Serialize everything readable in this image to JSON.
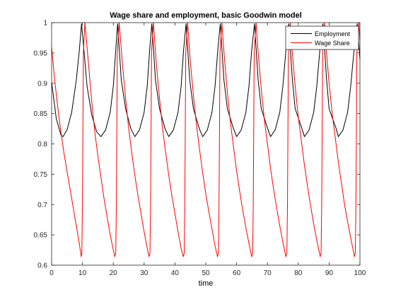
{
  "chart_data": {
    "type": "line",
    "title": "Wage share and employment, basic Goodwin model",
    "xlabel": "time",
    "ylabel": "",
    "xlim": [
      0,
      100
    ],
    "ylim": [
      0.6,
      1.0
    ],
    "xticks": [
      0,
      10,
      20,
      30,
      40,
      50,
      60,
      70,
      80,
      90,
      100
    ],
    "yticks": [
      0.6,
      0.65,
      0.7,
      0.75,
      0.8,
      0.85,
      0.9,
      0.95,
      1.0
    ],
    "xtick_labels": [
      "0",
      "10",
      "20",
      "30",
      "40",
      "50",
      "60",
      "70",
      "80",
      "90",
      "100"
    ],
    "ytick_labels": [
      "0.6",
      "0.65",
      "0.7",
      "0.75",
      "0.8",
      "0.85",
      "0.9",
      "0.95",
      "1"
    ],
    "grid": false,
    "legend": {
      "position": "top-right",
      "entries": [
        "Employment",
        "Wage Share"
      ]
    },
    "series": [
      {
        "name": "Employment",
        "color": "#000000",
        "x": [
          0,
          1.5,
          3,
          3.7,
          5,
          6.5,
          8,
          9,
          9.7,
          10.3,
          11.5,
          13,
          14.6,
          16,
          17.5,
          19,
          20,
          20.8,
          21.4,
          22.6,
          24,
          25.7,
          27,
          28.5,
          30,
          31,
          31.8,
          32.5,
          33.7,
          35,
          36.8,
          38,
          39.5,
          41,
          42,
          42.8,
          43.6,
          44.8,
          46,
          47.9,
          49,
          50.5,
          52,
          53,
          53.9,
          54.7,
          55.9,
          57,
          59,
          60,
          61.5,
          63,
          64,
          64.9,
          65.8,
          67,
          68,
          70.1,
          71,
          72.5,
          74,
          75,
          76,
          76.9,
          78.1,
          79,
          81.2,
          82,
          83.5,
          85,
          86,
          87,
          88,
          89.2,
          90,
          92.3,
          93,
          94.5,
          96,
          97,
          98.1,
          99.1,
          100
        ],
        "y": [
          0.902,
          0.842,
          0.815,
          0.812,
          0.823,
          0.852,
          0.905,
          0.955,
          0.998,
          0.965,
          0.895,
          0.848,
          0.82,
          0.812,
          0.823,
          0.852,
          0.895,
          0.955,
          0.998,
          0.905,
          0.858,
          0.825,
          0.812,
          0.823,
          0.852,
          0.895,
          0.955,
          0.998,
          0.905,
          0.858,
          0.825,
          0.812,
          0.823,
          0.852,
          0.895,
          0.955,
          0.998,
          0.905,
          0.858,
          0.825,
          0.812,
          0.823,
          0.852,
          0.895,
          0.955,
          0.998,
          0.905,
          0.858,
          0.825,
          0.812,
          0.823,
          0.852,
          0.895,
          0.955,
          0.998,
          0.905,
          0.858,
          0.825,
          0.812,
          0.823,
          0.852,
          0.895,
          0.955,
          0.998,
          0.905,
          0.858,
          0.825,
          0.812,
          0.823,
          0.852,
          0.895,
          0.955,
          0.998,
          0.905,
          0.858,
          0.825,
          0.812,
          0.823,
          0.852,
          0.895,
          0.955,
          0.998,
          0.94
        ]
      },
      {
        "name": "Wage Share",
        "color": "#ff0000",
        "x": [
          0,
          1,
          2,
          3,
          4,
          5,
          6,
          7,
          8,
          9,
          9.6,
          9.8,
          10,
          10.3,
          10.8,
          12,
          13,
          14,
          15,
          16,
          17,
          18,
          19,
          20,
          20.5,
          20.8,
          21,
          21.3,
          21.9,
          23,
          24,
          25,
          26,
          27,
          28,
          29,
          30,
          31,
          31.6,
          31.9,
          32.1,
          32.4,
          33,
          34,
          35,
          36,
          37,
          38,
          39,
          40,
          41,
          42,
          42.7,
          43,
          43.2,
          43.5,
          44.1,
          45,
          46,
          47,
          48,
          49,
          50,
          51,
          52,
          53,
          53.8,
          54.1,
          54.3,
          54.6,
          55.2,
          56,
          57,
          58,
          59,
          60,
          61,
          62,
          63,
          64,
          64.9,
          65.2,
          65.4,
          65.7,
          66.3,
          67,
          68,
          69,
          70,
          71,
          72,
          73,
          74,
          75,
          76,
          76,
          76.3,
          76.5,
          76.8,
          77.4,
          78,
          79,
          80,
          81,
          82,
          83,
          84,
          85,
          86,
          87,
          87.1,
          87.4,
          87.6,
          87.9,
          88.5,
          89,
          90,
          91,
          92,
          93,
          94,
          95,
          96,
          97,
          98,
          98.2,
          98.5,
          98.7,
          99,
          99.6,
          100
        ],
        "y": [
          0.96,
          0.905,
          0.86,
          0.82,
          0.785,
          0.755,
          0.725,
          0.695,
          0.665,
          0.635,
          0.614,
          0.62,
          0.7,
          0.95,
          1.0,
          0.93,
          0.87,
          0.82,
          0.78,
          0.745,
          0.71,
          0.68,
          0.65,
          0.625,
          0.614,
          0.62,
          0.7,
          0.95,
          1.0,
          0.93,
          0.875,
          0.825,
          0.785,
          0.748,
          0.715,
          0.685,
          0.655,
          0.628,
          0.614,
          0.62,
          0.7,
          0.95,
          1.0,
          0.93,
          0.875,
          0.825,
          0.785,
          0.748,
          0.715,
          0.685,
          0.655,
          0.628,
          0.614,
          0.62,
          0.7,
          0.95,
          1.0,
          0.935,
          0.88,
          0.83,
          0.79,
          0.752,
          0.718,
          0.688,
          0.66,
          0.632,
          0.614,
          0.62,
          0.7,
          0.95,
          1.0,
          0.945,
          0.885,
          0.835,
          0.795,
          0.755,
          0.722,
          0.69,
          0.662,
          0.636,
          0.614,
          0.62,
          0.7,
          0.95,
          1.0,
          0.95,
          0.89,
          0.84,
          0.8,
          0.76,
          0.725,
          0.694,
          0.665,
          0.638,
          0.614,
          0.614,
          0.62,
          0.7,
          0.95,
          1.0,
          0.955,
          0.895,
          0.845,
          0.805,
          0.765,
          0.73,
          0.698,
          0.668,
          0.641,
          0.617,
          0.614,
          0.62,
          0.7,
          0.95,
          1.0,
          0.96,
          0.9,
          0.85,
          0.81,
          0.77,
          0.735,
          0.7,
          0.672,
          0.645,
          0.62,
          0.614,
          0.62,
          0.7,
          0.95,
          1.0,
          0.97
        ]
      }
    ]
  }
}
